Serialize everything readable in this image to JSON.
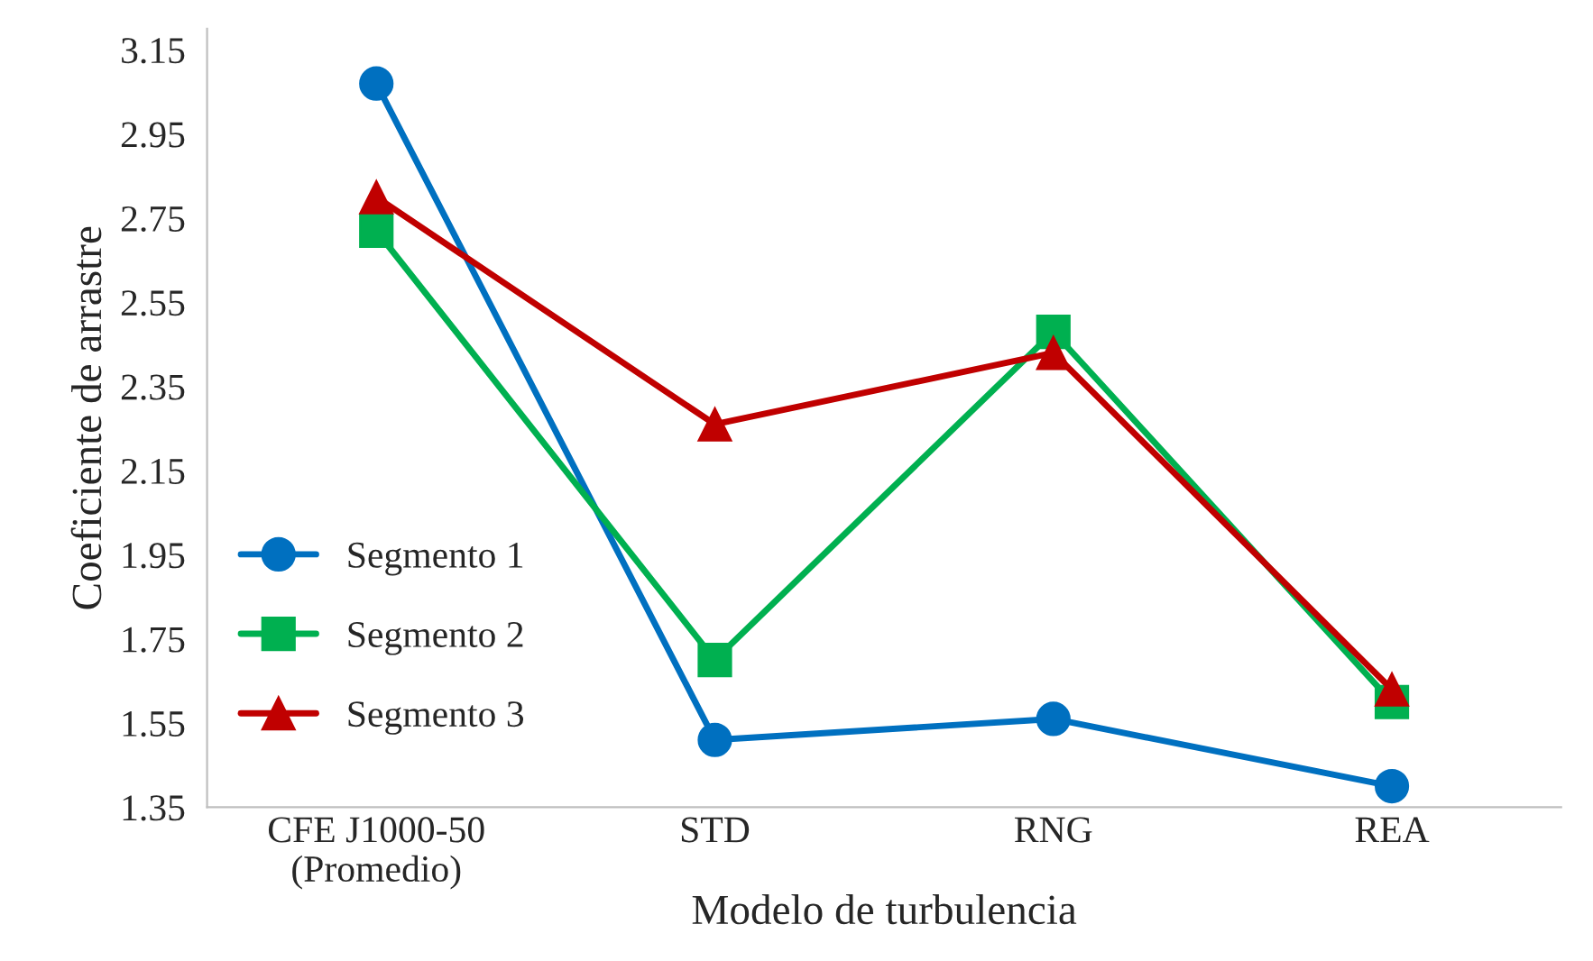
{
  "chart_data": {
    "type": "line",
    "xlabel": "Modelo de turbulencia",
    "ylabel": "Coeficiente de arrastre",
    "categories": [
      "CFE J1000-50\n(Promedio)",
      "STD",
      "RNG",
      "REA"
    ],
    "series": [
      {
        "name": "Segmento 1",
        "color": "#0070c0",
        "marker": "circle",
        "values": [
          3.07,
          1.51,
          1.56,
          1.4
        ]
      },
      {
        "name": "Segmento 2",
        "color": "#00b050",
        "marker": "square",
        "values": [
          2.72,
          1.7,
          2.48,
          1.6
        ]
      },
      {
        "name": "Segmento 3",
        "color": "#c00000",
        "marker": "triangle",
        "values": [
          2.8,
          2.26,
          2.43,
          1.63
        ]
      }
    ],
    "ylim": [
      1.35,
      3.2
    ],
    "yticks": [
      1.35,
      1.55,
      1.75,
      1.95,
      2.15,
      2.35,
      2.55,
      2.75,
      2.95,
      3.15
    ],
    "grid": false,
    "legend": "bottom left",
    "line_style": "solid"
  }
}
